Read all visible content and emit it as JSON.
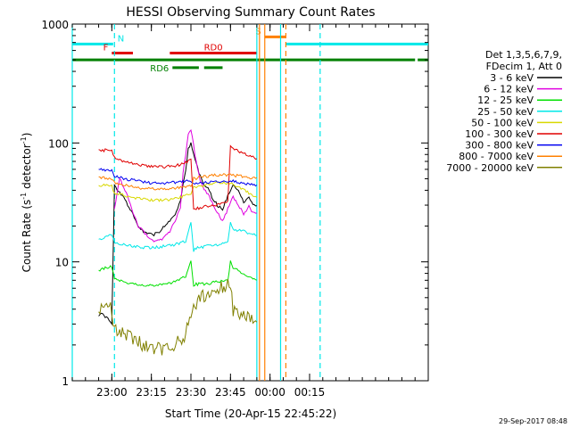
{
  "chart_data": {
    "type": "line",
    "title": "HESSI Observing Summary Count Rates",
    "xlabel": "Start Time (20-Apr-15 22:45:22)",
    "ylabel_main": "Count Rate (s",
    "ylabel_sup1": "-1",
    "ylabel_mid": " detector",
    "ylabel_sup2": "-1",
    "ylabel_end": ")",
    "yscale": "log",
    "ylim": [
      1,
      1000
    ],
    "xlim_minutes": [
      -15,
      120
    ],
    "y_ticks": [
      "1",
      "10",
      "100",
      "1000"
    ],
    "x_ticks": [
      {
        "label": "23:00",
        "m": 0
      },
      {
        "label": "23:15",
        "m": 15
      },
      {
        "label": "23:30",
        "m": 30
      },
      {
        "label": "23:45",
        "m": 45
      },
      {
        "label": "00:00",
        "m": 60
      },
      {
        "label": "00:15",
        "m": 75
      }
    ],
    "legend": {
      "title1": "Det 1,3,5,6,7,9,",
      "title2": "FDecim 1, Att 0",
      "placement": "right",
      "entries": [
        {
          "label": "3 - 6 keV",
          "color": "#000000"
        },
        {
          "label": "6 - 12 keV",
          "color": "#e000e0"
        },
        {
          "label": "12 - 25 keV",
          "color": "#00e000"
        },
        {
          "label": "25 - 50 keV",
          "color": "#00e8e8"
        },
        {
          "label": "50 - 100 keV",
          "color": "#d8d800"
        },
        {
          "label": "100 - 300 keV",
          "color": "#e00000"
        },
        {
          "label": "300 - 800 keV",
          "color": "#0000f0"
        },
        {
          "label": "800 - 7000 keV",
          "color": "#ff8000"
        },
        {
          "label": "7000 - 20000 keV",
          "color": "#808000"
        }
      ]
    },
    "series": [
      {
        "name": "3 - 6 keV",
        "color": "#000000",
        "x": [
          -5,
          -4,
          -3,
          -1,
          0,
          1,
          2,
          4,
          6,
          8,
          10,
          12,
          14,
          16,
          18,
          20,
          22,
          24,
          26,
          27,
          28,
          29,
          30,
          31,
          32,
          33,
          35,
          37,
          38,
          40,
          42,
          44,
          46,
          48,
          50,
          52,
          53,
          54,
          55
        ],
        "y": [
          3.5,
          3.8,
          3.6,
          3.2,
          3.0,
          45,
          40,
          36,
          30,
          25,
          20,
          18,
          17,
          17,
          18,
          20,
          22,
          25,
          32,
          45,
          60,
          90,
          100,
          80,
          70,
          55,
          45,
          40,
          35,
          30,
          28,
          36,
          45,
          40,
          32,
          35,
          32,
          30,
          29
        ]
      },
      {
        "name": "6 - 12 keV",
        "color": "#e000e0",
        "x": [
          1,
          2,
          3,
          4,
          6,
          8,
          10,
          12,
          14,
          16,
          18,
          20,
          22,
          24,
          26,
          27,
          28,
          29,
          30,
          31,
          32,
          33,
          34,
          36,
          38,
          40,
          42,
          44,
          46,
          48,
          50,
          52,
          53,
          54,
          55
        ],
        "y": [
          28,
          38,
          50,
          45,
          35,
          26,
          20,
          18,
          16,
          15,
          15,
          16,
          18,
          22,
          28,
          55,
          80,
          120,
          130,
          95,
          70,
          55,
          45,
          38,
          32,
          26,
          22,
          28,
          35,
          30,
          25,
          30,
          27,
          26,
          25
        ]
      },
      {
        "name": "12 - 25 keV",
        "color": "#00e000",
        "x": [
          -5,
          -3,
          -1,
          0,
          1,
          4,
          8,
          12,
          16,
          20,
          24,
          28,
          29,
          30,
          31,
          32,
          36,
          40,
          44,
          45,
          46,
          50,
          54,
          55
        ],
        "y": [
          8.5,
          8.8,
          9.0,
          9.2,
          7.2,
          6.8,
          6.5,
          6.3,
          6.3,
          6.5,
          6.8,
          7.5,
          8.5,
          10,
          6.2,
          6.5,
          6.5,
          6.8,
          7.0,
          10,
          9.0,
          8.0,
          7.2,
          7.0
        ]
      },
      {
        "name": "25 - 50 keV",
        "color": "#00e8e8",
        "x": [
          -5,
          -3,
          -1,
          0,
          1,
          4,
          8,
          12,
          16,
          20,
          24,
          28,
          30,
          31,
          32,
          36,
          40,
          44,
          45,
          46,
          50,
          54,
          55
        ],
        "y": [
          15.5,
          16,
          16.5,
          17,
          14.5,
          14,
          13.5,
          13.2,
          13.2,
          13.5,
          14,
          15,
          22,
          12.5,
          13,
          13.5,
          14,
          14.5,
          21,
          19,
          18,
          17,
          16.5
        ]
      },
      {
        "name": "50 - 100 keV",
        "color": "#d8d800",
        "x": [
          -5,
          -3,
          0,
          1,
          5,
          10,
          15,
          20,
          25,
          29,
          30,
          31,
          35,
          40,
          45,
          50,
          55
        ],
        "y": [
          44,
          44,
          43,
          38,
          36,
          34,
          33,
          33,
          34,
          37,
          38,
          42,
          44,
          46,
          46,
          40,
          35
        ]
      },
      {
        "name": "100 - 300 keV",
        "color": "#e00000",
        "x": [
          -5,
          -3,
          0,
          1,
          5,
          10,
          15,
          20,
          25,
          29,
          30,
          31,
          32,
          35,
          40,
          44,
          45,
          46,
          50,
          54,
          55
        ],
        "y": [
          88,
          87,
          86,
          75,
          70,
          65,
          63,
          63,
          65,
          70,
          75,
          28,
          28,
          29,
          30,
          32,
          95,
          90,
          82,
          76,
          74
        ]
      },
      {
        "name": "300 - 800 keV",
        "color": "#0000f0",
        "x": [
          -5,
          -3,
          0,
          1,
          5,
          10,
          15,
          20,
          25,
          30,
          31,
          35,
          40,
          45,
          50,
          55
        ],
        "y": [
          60,
          59,
          58,
          52,
          50,
          48,
          46,
          46,
          47,
          48,
          45,
          46,
          47,
          48,
          46,
          44
        ]
      },
      {
        "name": "800 - 7000 keV",
        "color": "#ff8000",
        "x": [
          -5,
          -3,
          0,
          1,
          5,
          10,
          15,
          20,
          25,
          30,
          31,
          35,
          40,
          45,
          50,
          55
        ],
        "y": [
          52,
          51,
          50,
          46,
          44,
          42,
          41,
          41,
          42,
          43,
          50,
          52,
          54,
          54,
          52,
          50
        ]
      },
      {
        "name": "7000 - 20000 keV",
        "color": "#808000",
        "x": [
          -5,
          -3,
          -1,
          0,
          1,
          4,
          8,
          12,
          16,
          20,
          24,
          28,
          29,
          30,
          31,
          32,
          36,
          40,
          44,
          45,
          46,
          50,
          54,
          55
        ],
        "y": [
          3.8,
          3.9,
          4.0,
          4.0,
          2.6,
          2.5,
          2.3,
          2.0,
          1.8,
          1.9,
          2.0,
          2.5,
          3.0,
          3.8,
          4.2,
          4.5,
          5.5,
          6.0,
          6.5,
          6.0,
          4.0,
          3.5,
          3.2,
          3.0
        ]
      }
    ],
    "flag_bars": [
      {
        "label": "N",
        "color": "#00e8e8",
        "segments": [
          [
            -15,
            0.5
          ],
          [
            66,
            120
          ]
        ],
        "level": 680
      },
      {
        "label": "F",
        "color": "#e00000",
        "segments": [
          [
            0,
            8
          ]
        ],
        "level": 570
      },
      {
        "label": "RD0",
        "color": "#e00000",
        "segments": [
          [
            22,
            55
          ]
        ],
        "level": 570
      },
      {
        "label": "S",
        "color": "#ff8000",
        "segments": [
          [
            58,
            66
          ]
        ],
        "level": 780
      },
      {
        "label": "",
        "color": "#008000",
        "segments": [
          [
            -15,
            115
          ],
          [
            116,
            120
          ]
        ],
        "level": 500
      },
      {
        "label": "RD6",
        "color": "#008000",
        "segments": [
          [
            23,
            33
          ],
          [
            35,
            42
          ]
        ],
        "level": 430
      }
    ],
    "vertical_lines": [
      {
        "m": -15,
        "color": "#00e8e8",
        "style": "solid"
      },
      {
        "m": 1,
        "color": "#00e8e8",
        "style": "dashed"
      },
      {
        "m": 56,
        "color": "#ff8000",
        "style": "solid"
      },
      {
        "m": 58,
        "color": "#ff8000",
        "style": "solid"
      },
      {
        "m": 64,
        "color": "#00e8e8",
        "style": "solid"
      },
      {
        "m": 66,
        "color": "#ff8000",
        "style": "dashed"
      },
      {
        "m": 79,
        "color": "#00e8e8",
        "style": "dashed"
      },
      {
        "m": 55,
        "color": "#00e8e8",
        "style": "solid"
      }
    ],
    "timestamp": "29-Sep-2017 08:48"
  }
}
